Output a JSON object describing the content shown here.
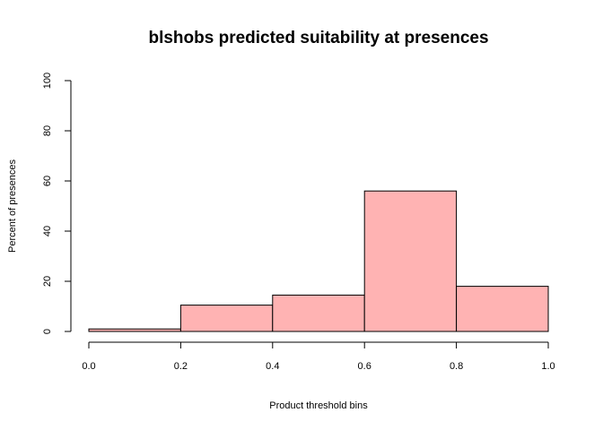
{
  "chart_data": {
    "type": "bar",
    "title": "blshobs predicted suitability at presences",
    "xlabel": "Product threshold bins",
    "ylabel": "Percent of presences",
    "bins": [
      {
        "start": 0.0,
        "end": 0.2,
        "value": 1
      },
      {
        "start": 0.2,
        "end": 0.4,
        "value": 10.5
      },
      {
        "start": 0.4,
        "end": 0.6,
        "value": 14.5
      },
      {
        "start": 0.6,
        "end": 0.8,
        "value": 56
      },
      {
        "start": 0.8,
        "end": 1.0,
        "value": 18
      }
    ],
    "xlim": [
      0,
      1
    ],
    "ylim": [
      0,
      100
    ],
    "xticks": [
      "0.0",
      "0.2",
      "0.4",
      "0.6",
      "0.8",
      "1.0"
    ],
    "yticks": [
      "0",
      "20",
      "40",
      "60",
      "80",
      "100"
    ],
    "bar_color": "#ffb3b3",
    "grid": false,
    "legend": "none"
  }
}
